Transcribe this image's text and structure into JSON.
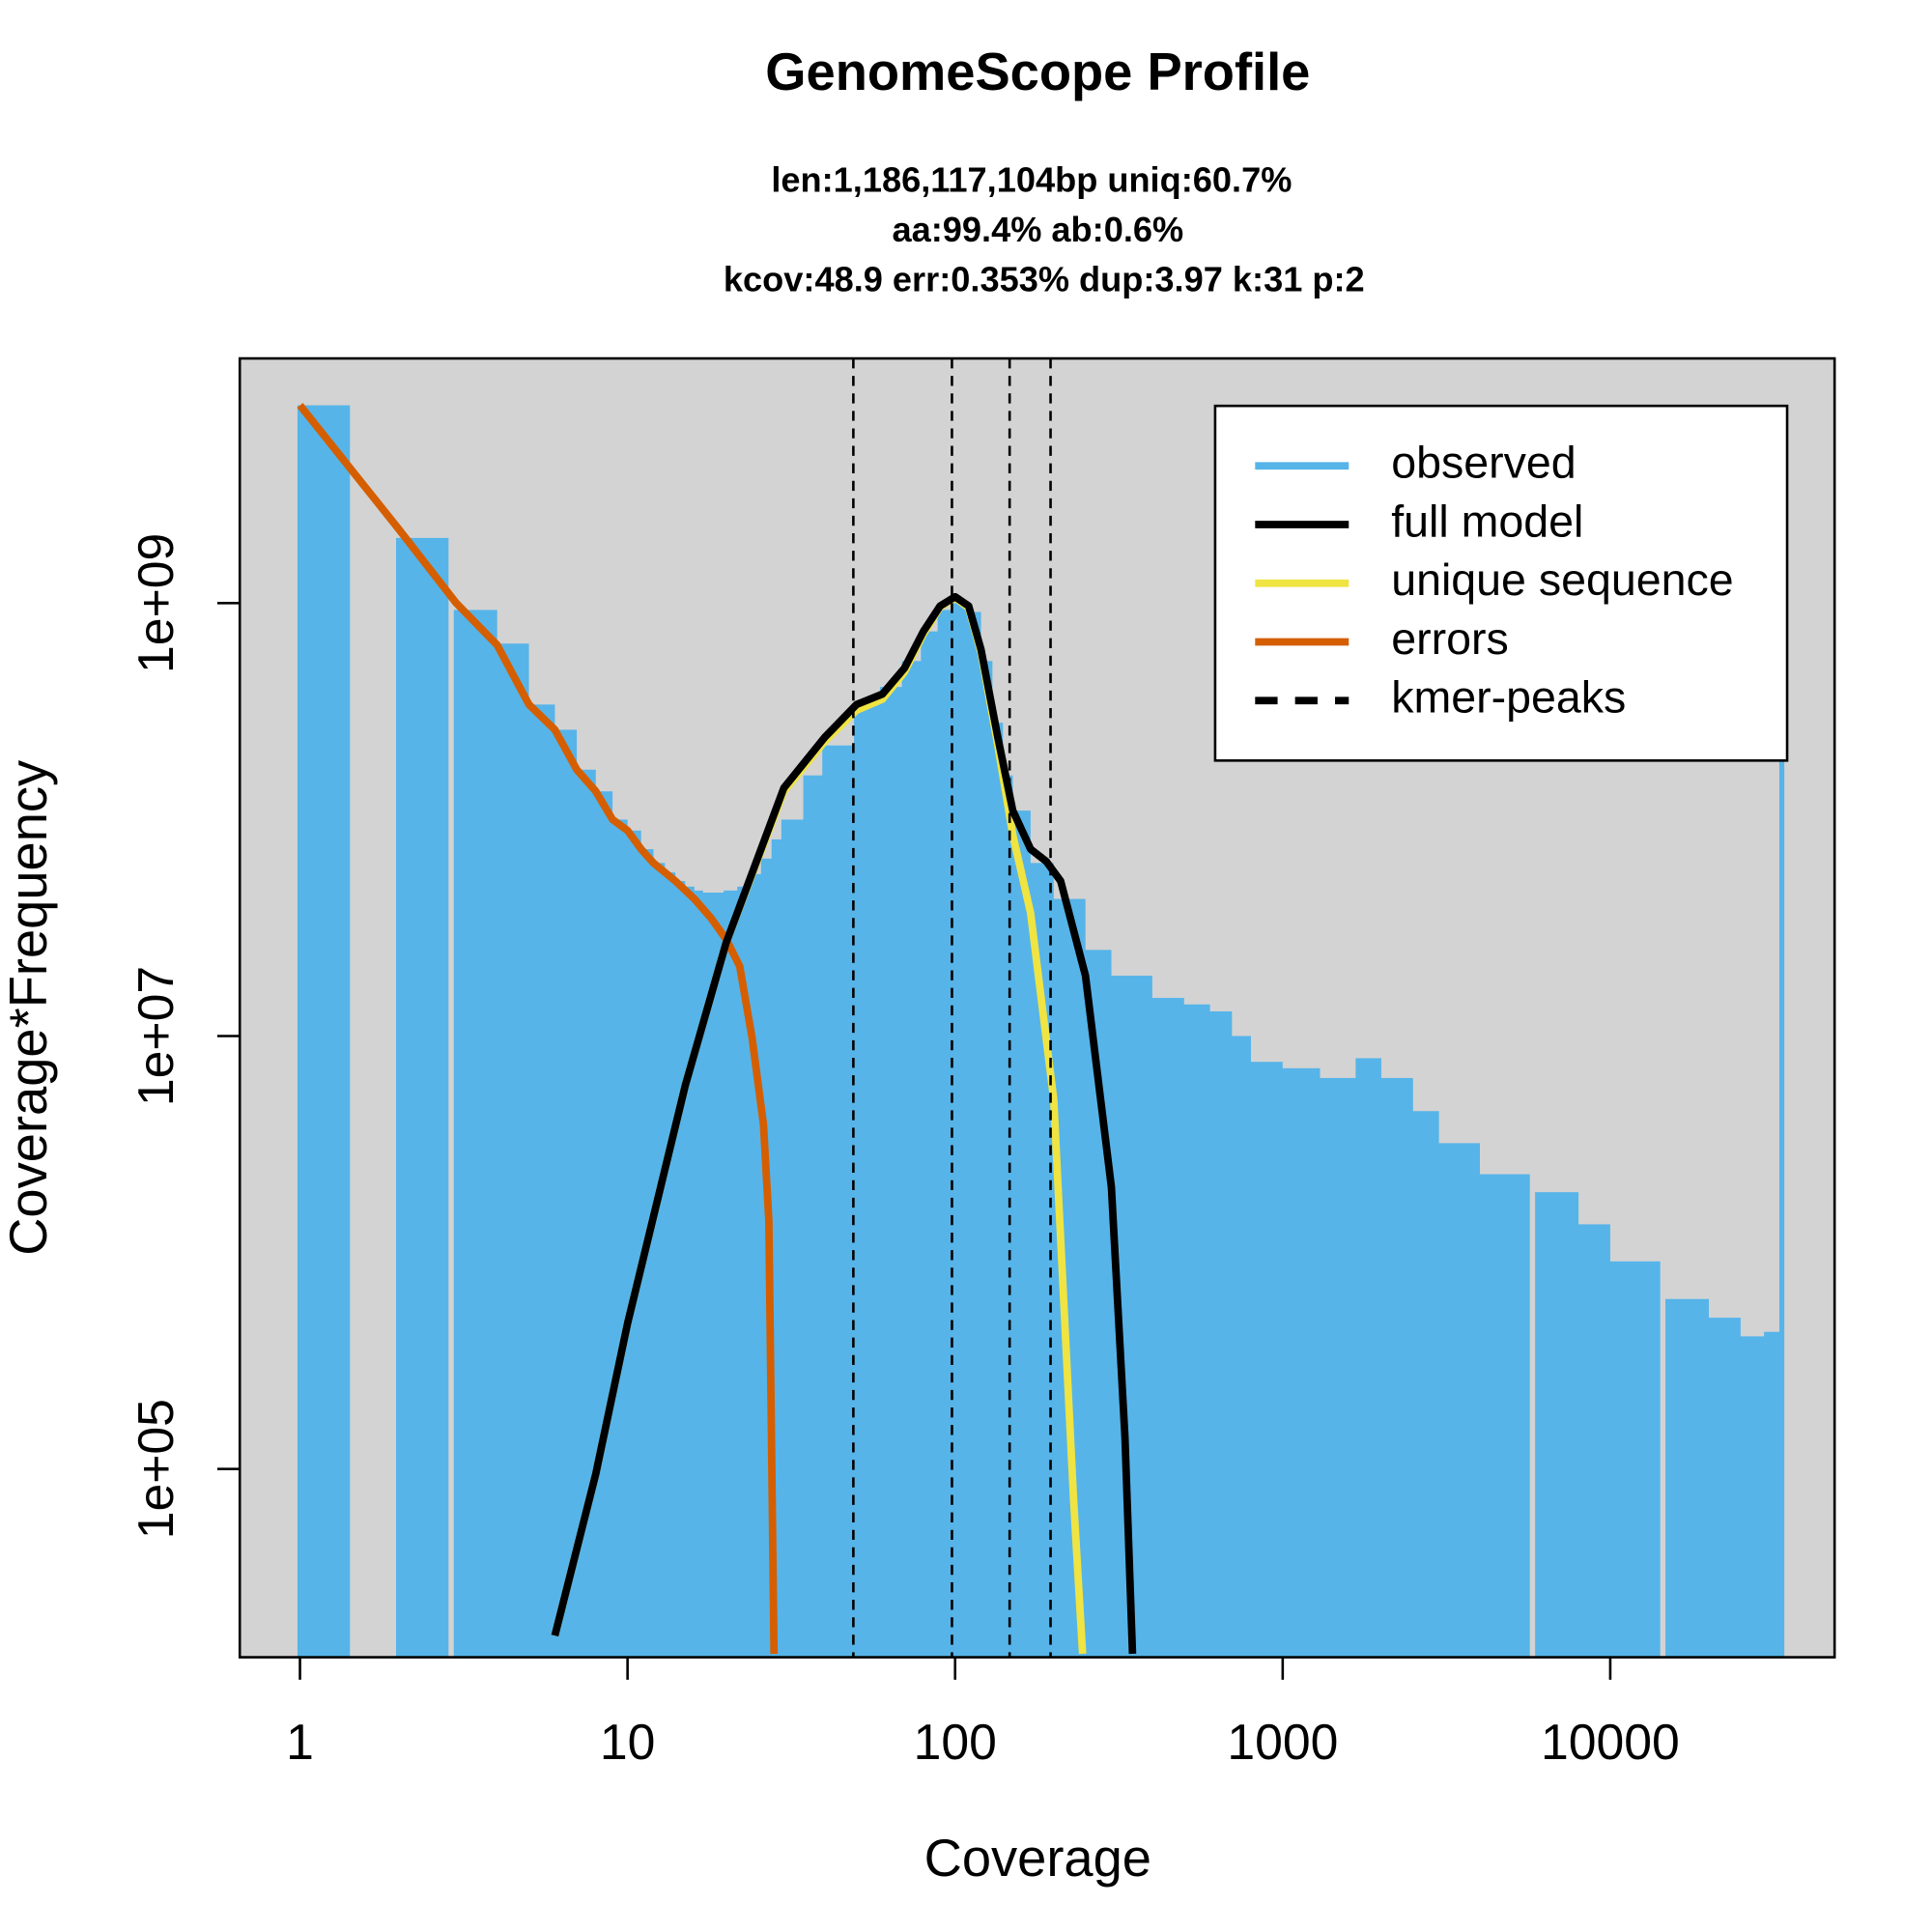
{
  "chart_data": {
    "type": "genomescope",
    "title": "GenomeScope Profile",
    "subtitle": [
      "len:1,186,117,104bp uniq:60.7%",
      "aa:99.4% ab:0.6%",
      "kcov:48.9 err:0.353%  dup:3.97  k:31 p:2"
    ],
    "x_label": "Coverage",
    "y_label": "Coverage*Frequency",
    "log_x": true,
    "log_y": true,
    "xlim": [
      0.655,
      48400
    ],
    "ylim": [
      13500,
      13500000000
    ],
    "xticks": [
      1,
      10,
      100,
      1000,
      10000
    ],
    "yticks": [
      {
        "value": 100000,
        "label": "1e+05"
      },
      {
        "value": 10000000,
        "label": "1e+07"
      },
      {
        "value": 1000000000,
        "label": "1e+09"
      }
    ],
    "background": "#d3d3d3",
    "legend": "topright",
    "series": [
      {
        "name": "observed",
        "color": "#56b4e9",
        "style": "h",
        "x": [
          1,
          2,
          3,
          4,
          5,
          6,
          7,
          8,
          9,
          10,
          11,
          12,
          13,
          14,
          15,
          16,
          17,
          18,
          19,
          20,
          22,
          24,
          26,
          28,
          30,
          35,
          40,
          50,
          60,
          70,
          80,
          90,
          100,
          110,
          120,
          130,
          140,
          150,
          170,
          200,
          250,
          300,
          400,
          500,
          600,
          700,
          800,
          1000,
          1300,
          1700,
          2000,
          2500,
          3000,
          4000,
          6000,
          8000,
          10000,
          15000,
          20000,
          25000,
          30000,
          33400
        ],
        "values": [
          8200000000,
          2000000000,
          930000000,
          650000000,
          340000000,
          260000000,
          170000000,
          135000000,
          100000000,
          89000000,
          73000000,
          63000000,
          57000000,
          52000000,
          49000000,
          47000000,
          46000000,
          46000000,
          46000000,
          47000000,
          49000000,
          56000000,
          66000000,
          81000000,
          100000000,
          160000000,
          220000000,
          340000000,
          410000000,
          540000000,
          740000000,
          930000000,
          1000000000,
          910000000,
          540000000,
          280000000,
          160000000,
          110000000,
          63000000,
          43000000,
          25000000,
          19000000,
          15000000,
          14000000,
          13000000,
          10000000,
          7600000,
          7100000,
          6400000,
          7900000,
          6400000,
          4500000,
          3200000,
          2300000,
          1900000,
          1350000,
          910000,
          610000,
          500000,
          410000,
          430000,
          190000000
        ]
      },
      {
        "name": "full model",
        "color": "#000000",
        "style": "line",
        "x": [
          6,
          8,
          10,
          15,
          20,
          30,
          40,
          50,
          60,
          70,
          80,
          90,
          100,
          110,
          120,
          135,
          150,
          170,
          190,
          210,
          250,
          300,
          330,
          348
        ],
        "values": [
          17000,
          95000,
          470000,
          5900000,
          27000000,
          140000000,
          240000000,
          340000000,
          380000000,
          500000000,
          740000000,
          970000000,
          1070000000,
          970000000,
          610000000,
          240000000,
          110000000,
          73000000,
          64000000,
          52000000,
          19000000,
          2000000,
          140000,
          14000
        ]
      },
      {
        "name": "unique sequence",
        "color": "#f0e442",
        "style": "line",
        "x": [
          6,
          8,
          10,
          15,
          20,
          30,
          40,
          50,
          60,
          70,
          80,
          90,
          100,
          110,
          120,
          135,
          150,
          170,
          200,
          230,
          245
        ],
        "values": [
          17000,
          95000,
          470000,
          5900000,
          27000000,
          135000000,
          230000000,
          320000000,
          360000000,
          480000000,
          720000000,
          960000000,
          1060000000,
          950000000,
          590000000,
          220000000,
          85000000,
          37000000,
          5100000,
          72000,
          14000
        ]
      },
      {
        "name": "errors",
        "color": "#d55e00",
        "style": "line",
        "x": [
          1,
          2,
          3,
          4,
          5,
          6,
          7,
          8,
          9,
          10,
          11,
          12,
          14,
          16,
          18,
          20,
          22,
          24,
          26,
          27,
          28
        ],
        "values": [
          8200000000,
          2200000000,
          1000000000,
          640000000,
          340000000,
          260000000,
          170000000,
          135000000,
          100000000,
          89000000,
          73000000,
          63000000,
          52000000,
          43000000,
          35000000,
          28000000,
          21000000,
          9800000,
          3900000,
          1400000,
          14000
        ]
      }
    ],
    "kmer_peaks": {
      "name": "kmer-peaks",
      "color": "#000000",
      "values": [
        48.9,
        97.8,
        146.7,
        195.6
      ]
    }
  }
}
